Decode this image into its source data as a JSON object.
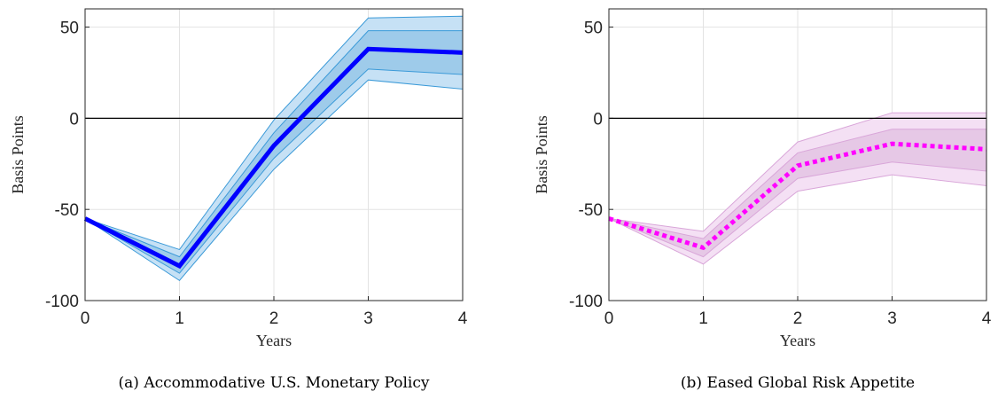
{
  "chart_data": [
    {
      "type": "line",
      "title": "(a) Accommodative U.S. Monetary Policy",
      "xlabel": "Years",
      "ylabel": "Basis Points",
      "x": [
        0,
        1,
        2,
        3,
        4
      ],
      "xlim": [
        0,
        4
      ],
      "xticks": [
        0,
        1,
        2,
        3,
        4
      ],
      "ylim": [
        -100,
        60
      ],
      "yticks": [
        -100,
        -50,
        0,
        50
      ],
      "grid": true,
      "zero_line": true,
      "series": [
        {
          "color": "#0000ff",
          "style": "solid",
          "values": [
            -55,
            -81,
            -15,
            38,
            36
          ]
        }
      ],
      "bands": [
        {
          "color": "#c6e1f5",
          "edge": "#3b9ad8",
          "lower": [
            -55,
            -89,
            -28,
            21,
            16
          ],
          "upper": [
            -55,
            -72,
            -1,
            55,
            56
          ]
        },
        {
          "color": "#9ecbea",
          "edge": "#3b9ad8",
          "lower": [
            -55,
            -85,
            -22,
            27,
            24
          ],
          "upper": [
            -55,
            -76,
            -8,
            48,
            48
          ]
        }
      ]
    },
    {
      "type": "line",
      "title": "(b) Eased Global Risk Appetite",
      "xlabel": "Years",
      "ylabel": "Basis Points",
      "x": [
        0,
        1,
        2,
        3,
        4
      ],
      "xlim": [
        0,
        4
      ],
      "xticks": [
        0,
        1,
        2,
        3,
        4
      ],
      "ylim": [
        -100,
        60
      ],
      "yticks": [
        -100,
        -50,
        0,
        50
      ],
      "grid": true,
      "zero_line": true,
      "series": [
        {
          "color": "#ff00ff",
          "style": "dotted",
          "values": [
            -55,
            -71,
            -26,
            -14,
            -17
          ]
        }
      ],
      "bands": [
        {
          "color": "#f4e0f4",
          "edge": "#d9a6d9",
          "lower": [
            -55,
            -80,
            -40,
            -31,
            -37
          ],
          "upper": [
            -55,
            -62,
            -13,
            3,
            3
          ]
        },
        {
          "color": "#e6c8e6",
          "edge": "#d9a6d9",
          "lower": [
            -55,
            -76,
            -33,
            -24,
            -29
          ],
          "upper": [
            -55,
            -66,
            -19,
            -6,
            -6
          ]
        }
      ]
    }
  ]
}
